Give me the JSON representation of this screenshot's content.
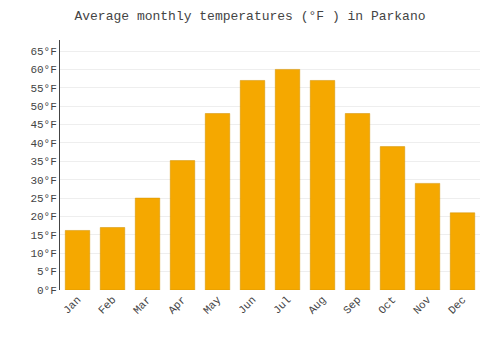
{
  "chart_data": {
    "type": "bar",
    "title": "Average monthly temperatures (°F ) in Parkano",
    "categories": [
      "Jan",
      "Feb",
      "Mar",
      "Apr",
      "May",
      "Jun",
      "Jul",
      "Aug",
      "Sep",
      "Oct",
      "Nov",
      "Dec"
    ],
    "values": [
      16.2,
      17.0,
      25.0,
      35.2,
      48.0,
      57.0,
      60.0,
      57.0,
      48.0,
      39.0,
      29.0,
      21.0
    ],
    "color": "#F5A800",
    "ylim": [
      0,
      68
    ],
    "yticks": [
      {
        "value": 0,
        "label": "0°F"
      },
      {
        "value": 5,
        "label": "5°F"
      },
      {
        "value": 10,
        "label": "10°F"
      },
      {
        "value": 15,
        "label": "15°F"
      },
      {
        "value": 20,
        "label": "20°F"
      },
      {
        "value": 25,
        "label": "25°F"
      },
      {
        "value": 30,
        "label": "30°F"
      },
      {
        "value": 35,
        "label": "35°F"
      },
      {
        "value": 40,
        "label": "40°F"
      },
      {
        "value": 45,
        "label": "45°F"
      },
      {
        "value": 50,
        "label": "50°F"
      },
      {
        "value": 55,
        "label": "55°F"
      },
      {
        "value": 60,
        "label": "60°F"
      },
      {
        "value": 65,
        "label": "65°F"
      }
    ],
    "grid": true
  }
}
